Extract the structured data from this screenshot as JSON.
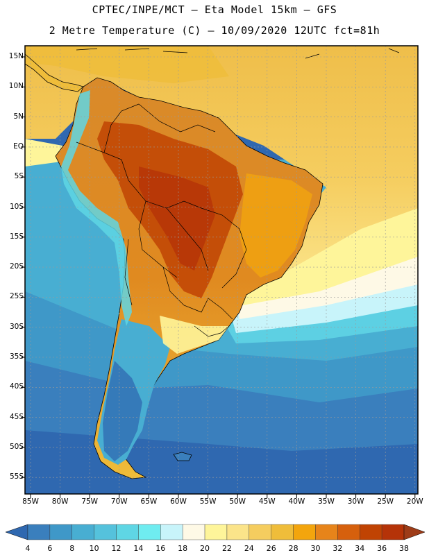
{
  "header": {
    "title_line1": "CPTEC/INPE/MCT –  Eta Model 15km – GFS",
    "title_line2": "2 Metre Temperature (C) – 10/09/2020 12UTC fct=81h"
  },
  "map": {
    "lat_labels": [
      "15N",
      "10N",
      "5N",
      "EQ",
      "5S",
      "10S",
      "15S",
      "20S",
      "25S",
      "30S",
      "35S",
      "40S",
      "45S",
      "50S",
      "55S"
    ],
    "lon_labels": [
      "85W",
      "80W",
      "75W",
      "70W",
      "65W",
      "60W",
      "55W",
      "50W",
      "45W",
      "40W",
      "35W",
      "30W",
      "25W",
      "20W"
    ],
    "region": "South America",
    "field": "2 m temperature"
  },
  "colorbar": {
    "labels": [
      "4",
      "6",
      "8",
      "10",
      "12",
      "14",
      "16",
      "18",
      "20",
      "22",
      "24",
      "26",
      "28",
      "30",
      "32",
      "34",
      "36",
      "38"
    ],
    "colors": [
      "#2f68b0",
      "#3a7fbd",
      "#3f98c8",
      "#48aed2",
      "#55c2dc",
      "#5fd6e4",
      "#6fecf0",
      "#c8f4fa",
      "#fef9e6",
      "#fef59a",
      "#fbe48a",
      "#f5cd5f",
      "#efbd3a",
      "#f3a50d",
      "#e7841a",
      "#d6600d",
      "#c04303",
      "#b53308",
      "#9e3c18"
    ]
  }
}
